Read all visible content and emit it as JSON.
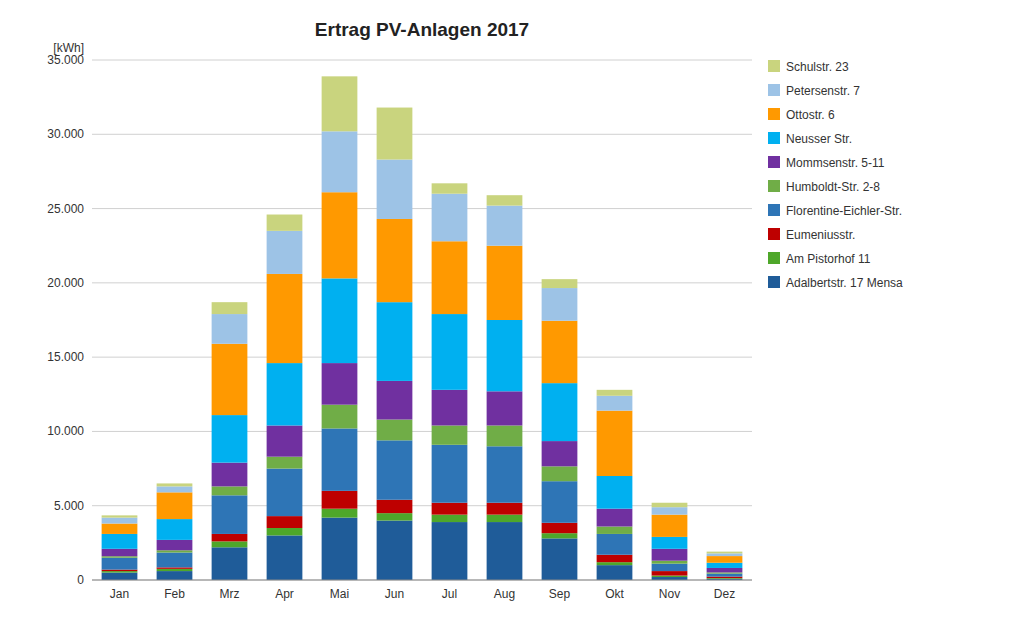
{
  "chart_data": {
    "type": "bar",
    "stacked": true,
    "title": "Ertrag PV-Anlagen 2017",
    "y_label": "[kWh]",
    "categories": [
      "Jan",
      "Feb",
      "Mrz",
      "Apr",
      "Mai",
      "Jun",
      "Jul",
      "Aug",
      "Sep",
      "Okt",
      "Nov",
      "Dez"
    ],
    "series": [
      {
        "name": "Adalbertstr. 17 Mensa",
        "color": "#1F5C99",
        "values": [
          500,
          600,
          2200,
          3000,
          4200,
          4000,
          3900,
          3900,
          2800,
          1000,
          200,
          80
        ]
      },
      {
        "name": "Am Pistorhof 11",
        "color": "#4EA72A",
        "values": [
          100,
          150,
          400,
          500,
          600,
          500,
          500,
          500,
          350,
          200,
          100,
          50
        ]
      },
      {
        "name": "Eumeniusstr.",
        "color": "#BE0000",
        "values": [
          100,
          100,
          500,
          800,
          1200,
          900,
          800,
          800,
          700,
          500,
          300,
          100
        ]
      },
      {
        "name": "Florentine-Eichler-Str.",
        "color": "#2E75B6",
        "values": [
          800,
          1000,
          2600,
          3200,
          4200,
          4000,
          3900,
          3800,
          2800,
          1400,
          500,
          200
        ]
      },
      {
        "name": "Humboldt-Str. 2-8",
        "color": "#70AD47",
        "values": [
          100,
          150,
          600,
          800,
          1600,
          1400,
          1300,
          1400,
          1000,
          500,
          200,
          80
        ]
      },
      {
        "name": "Mommsenstr. 5-11",
        "color": "#7030A0",
        "values": [
          500,
          700,
          1600,
          2100,
          2800,
          2600,
          2400,
          2300,
          1700,
          1200,
          800,
          300
        ]
      },
      {
        "name": "Neusser Str.",
        "color": "#00B0F0",
        "values": [
          1000,
          1400,
          3200,
          4200,
          5700,
          5300,
          5100,
          4800,
          3900,
          2200,
          800,
          350
        ]
      },
      {
        "name": "Ottostr. 6",
        "color": "#FF9900",
        "values": [
          700,
          1800,
          4800,
          6000,
          5800,
          5600,
          4900,
          5000,
          4200,
          4400,
          1500,
          450
        ]
      },
      {
        "name": "Petersenstr. 7",
        "color": "#9DC3E6",
        "values": [
          400,
          400,
          2000,
          2900,
          4100,
          4000,
          3200,
          2700,
          2200,
          1000,
          500,
          180
        ]
      },
      {
        "name": "Schulstr. 23",
        "color": "#C9D47E",
        "values": [
          150,
          200,
          800,
          1100,
          3700,
          3500,
          700,
          700,
          600,
          400,
          300,
          120
        ]
      }
    ],
    "ylim": [
      0,
      35000
    ],
    "yticks": [
      0,
      {
        "value": 5000,
        "label": "5.000"
      },
      {
        "value": 10000,
        "label": "10.000"
      },
      {
        "value": 15000,
        "label": "15.000"
      },
      {
        "value": 20000,
        "label": "20.000"
      },
      {
        "value": 25000,
        "label": "25.000"
      },
      {
        "value": 30000,
        "label": "30.000"
      },
      {
        "value": 35000,
        "label": "35.000"
      }
    ],
    "grid": true,
    "legend": "right"
  }
}
